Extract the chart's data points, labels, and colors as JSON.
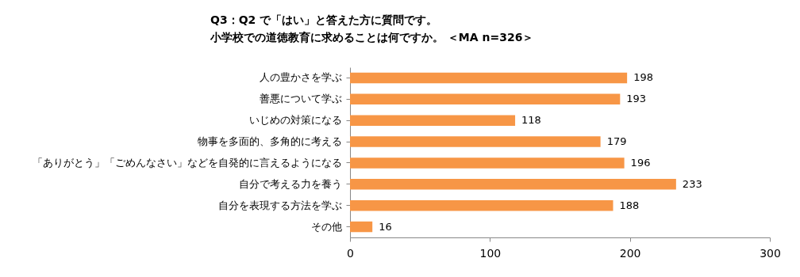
{
  "chart_data": {
    "type": "bar",
    "orientation": "horizontal",
    "title": "Q3：Q2 で「はい」と答えた方に質問です。",
    "subtitle": "小学校での道徳教育に求めることは何ですか。 ＜MA n=326＞",
    "categories": [
      "人の豊かさを学ぶ",
      "善悪について学ぶ",
      "いじめの対策になる",
      "物事を多面的、多角的に考える",
      "「ありがとう」「ごめんなさい」などを自発的に言えるようになる",
      "自分で考える力を養う",
      "自分を表現する方法を学ぶ",
      "その他"
    ],
    "values": [
      198,
      193,
      118,
      179,
      196,
      233,
      188,
      16
    ],
    "color": "#f79646",
    "xlim": [
      0,
      300
    ],
    "xticks": [
      0,
      100,
      200,
      300
    ],
    "grid": false,
    "data_labels": true
  }
}
